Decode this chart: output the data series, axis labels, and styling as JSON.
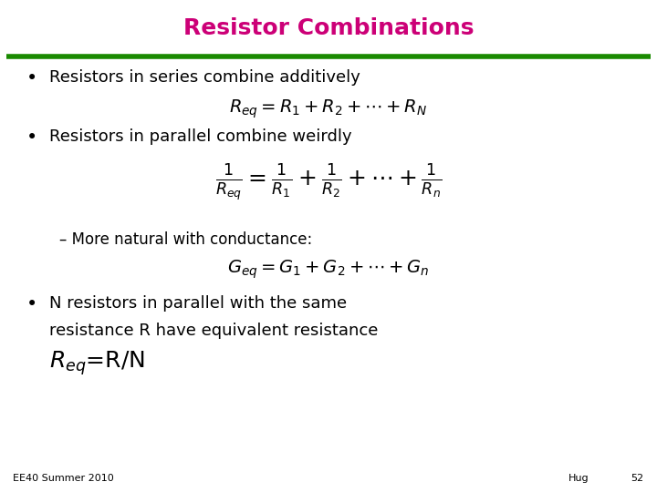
{
  "title": "Resistor Combinations",
  "title_color": "#CC0077",
  "title_fontsize": 18,
  "bg_color": "#FFFFFF",
  "line_color": "#1A8A00",
  "bullet1": "Resistors in series combine additively",
  "formula1": "$R_{eq} = R_1 + R_2 + \\cdots + R_N$",
  "bullet2": "Resistors in parallel combine weirdly",
  "formula2": "$\\frac{1}{R_{eq}} = \\frac{1}{R_1} + \\frac{1}{R_2} + \\cdots + \\frac{1}{R_n}$",
  "sub_bullet": "– More natural with conductance:",
  "formula3": "$G_{eq} = G_1 + G_2 + \\cdots + G_n$",
  "bullet3_line1": "N resistors in parallel with the same",
  "bullet3_line2": "resistance R have equivalent resistance",
  "bullet3_line3": "$R_{eq}$=R/N",
  "footer_left": "EE40 Summer 2010",
  "footer_right": "Hug",
  "footer_page": "52",
  "text_color": "#000000",
  "bullet_fontsize": 13,
  "formula_fontsize": 13,
  "sub_fontsize": 12,
  "footer_fontsize": 8
}
